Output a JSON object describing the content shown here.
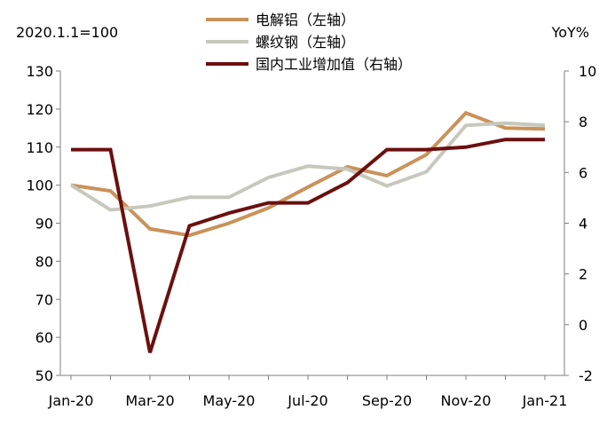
{
  "chart_data": {
    "type": "line",
    "left_axis_note": "2020.1.1=100",
    "right_axis_note": "YoY%",
    "categories": [
      "Jan-20",
      "Feb-20",
      "Mar-20",
      "Apr-20",
      "May-20",
      "Jun-20",
      "Jul-20",
      "Aug-20",
      "Sep-20",
      "Oct-20",
      "Nov-20",
      "Dec-20",
      "Jan-21"
    ],
    "x_tick_labels": [
      "Jan-20",
      "Mar-20",
      "May-20",
      "Jul-20",
      "Sep-20",
      "Nov-20",
      "Jan-21"
    ],
    "y_left": {
      "lim": [
        50,
        130
      ],
      "ticks": [
        50,
        60,
        70,
        80,
        90,
        100,
        110,
        120,
        130
      ]
    },
    "y_right": {
      "lim": [
        -2,
        10
      ],
      "ticks": [
        -2,
        0,
        2,
        4,
        6,
        8,
        10
      ]
    },
    "grid": false,
    "legend_position": "top-center",
    "series": [
      {
        "name": "电解铝（左轴）",
        "axis": "left",
        "color": "#C9925A",
        "values": [
          100.0,
          98.5,
          88.5,
          86.8,
          90.0,
          94.0,
          99.5,
          104.8,
          102.5,
          108.0,
          119.0,
          115.0,
          114.8
        ]
      },
      {
        "name": "螺纹钢（左轴）",
        "axis": "left",
        "color": "#C7C8BC",
        "values": [
          100.0,
          93.5,
          94.5,
          96.8,
          96.8,
          102.0,
          105.0,
          104.2,
          99.8,
          103.5,
          115.7,
          116.3,
          115.7
        ]
      },
      {
        "name": "国内工业增加值（右轴）",
        "axis": "right",
        "color": "#6B0F0F",
        "values": [
          6.9,
          6.9,
          -1.1,
          3.9,
          4.4,
          4.8,
          4.8,
          5.6,
          6.9,
          6.9,
          7.0,
          7.3,
          7.3
        ]
      }
    ]
  }
}
